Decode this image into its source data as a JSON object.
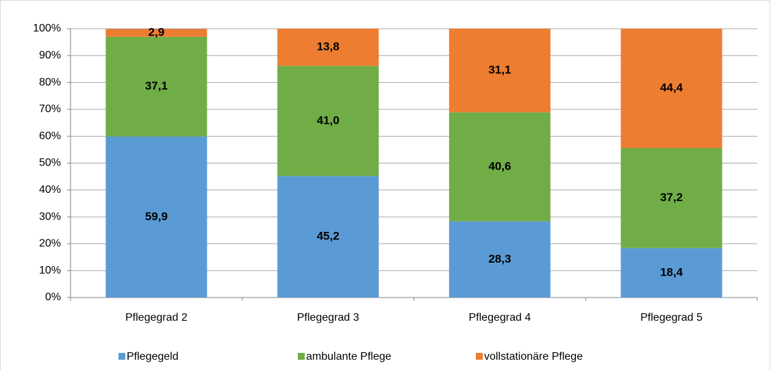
{
  "chart_data": {
    "type": "stacked_bar",
    "categories": [
      "Pflegegrad 2",
      "Pflegegrad 3",
      "Pflegegrad 4",
      "Pflegegrad 5"
    ],
    "series": [
      {
        "name": "Pflegegeld",
        "color": "#5b9bd5",
        "values": [
          59.9,
          45.2,
          28.3,
          18.4
        ],
        "value_labels": [
          "59,9",
          "45,2",
          "28,3",
          "18,4"
        ]
      },
      {
        "name": "ambulante Pflege",
        "color": "#70ad47",
        "values": [
          37.1,
          41.0,
          40.6,
          37.2
        ],
        "value_labels": [
          "37,1",
          "41,0",
          "40,6",
          "37,2"
        ]
      },
      {
        "name": "vollstationäre Pflege",
        "color": "#ed7d31",
        "values": [
          2.9,
          13.8,
          31.1,
          44.4
        ],
        "value_labels": [
          "2,9",
          "13,8",
          "31,1",
          "44,4"
        ]
      }
    ],
    "ylim": [
      0,
      100
    ],
    "yticks": [
      {
        "value": 0,
        "label": "0%"
      },
      {
        "value": 10,
        "label": "10%"
      },
      {
        "value": 20,
        "label": "20%"
      },
      {
        "value": 30,
        "label": "30%"
      },
      {
        "value": 40,
        "label": "40%"
      },
      {
        "value": 50,
        "label": "50%"
      },
      {
        "value": 60,
        "label": "60%"
      },
      {
        "value": 70,
        "label": "70%"
      },
      {
        "value": 80,
        "label": "80%"
      },
      {
        "value": 90,
        "label": "90%"
      },
      {
        "value": 100,
        "label": "100%"
      }
    ],
    "grid": true,
    "legend": "bottom"
  }
}
